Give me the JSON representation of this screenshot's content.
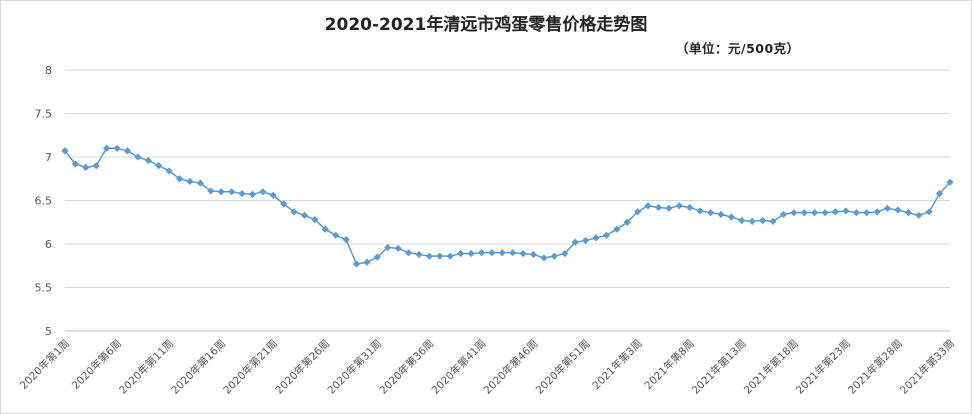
{
  "chart_data": {
    "type": "line",
    "title": "2020-2021年清远市鸡蛋零售价格走势图",
    "subtitle": "（单位：元/500克）",
    "xlabel": "",
    "ylabel": "",
    "ylim": [
      5,
      8
    ],
    "yticks": [
      5,
      5.5,
      6,
      6.5,
      7,
      7.5,
      8
    ],
    "grid": true,
    "legend": "none",
    "line_color": "#5b9bd5",
    "x_tick_labels": [
      "2020年第1周",
      "2020年第6周",
      "2020年第11周",
      "2020年第16周",
      "2020年第21周",
      "2020年第26周",
      "2020年第31周",
      "2020年第36周",
      "2020年第41周",
      "2020年第46周",
      "2020年第51周",
      "2021年第3周",
      "2021年第8周",
      "2021年第13周",
      "2021年第18周",
      "2021年第23周",
      "2021年第28周",
      "2021年第33周"
    ],
    "series": [
      {
        "values": [
          7.07,
          6.92,
          6.88,
          6.9,
          7.1,
          7.1,
          7.07,
          7.0,
          6.96,
          6.9,
          6.84,
          6.75,
          6.72,
          6.7,
          6.61,
          6.6,
          6.6,
          6.58,
          6.57,
          6.6,
          6.56,
          6.46,
          6.37,
          6.33,
          6.28,
          6.17,
          6.1,
          6.05,
          5.77,
          5.79,
          5.85,
          5.96,
          5.95,
          5.9,
          5.88,
          5.86,
          5.86,
          5.86,
          5.89,
          5.89,
          5.9,
          5.9,
          5.9,
          5.9,
          5.89,
          5.88,
          5.84,
          5.86,
          5.89,
          6.02,
          6.04,
          6.07,
          6.1,
          6.17,
          6.25,
          6.37,
          6.44,
          6.42,
          6.41,
          6.44,
          6.42,
          6.38,
          6.36,
          6.34,
          6.31,
          6.27,
          6.26,
          6.27,
          6.26,
          6.34,
          6.36,
          6.36,
          6.36,
          6.36,
          6.37,
          6.38,
          6.36,
          6.36,
          6.37,
          6.41,
          6.39,
          6.36,
          6.33,
          6.37,
          6.58,
          6.71
        ]
      }
    ]
  }
}
